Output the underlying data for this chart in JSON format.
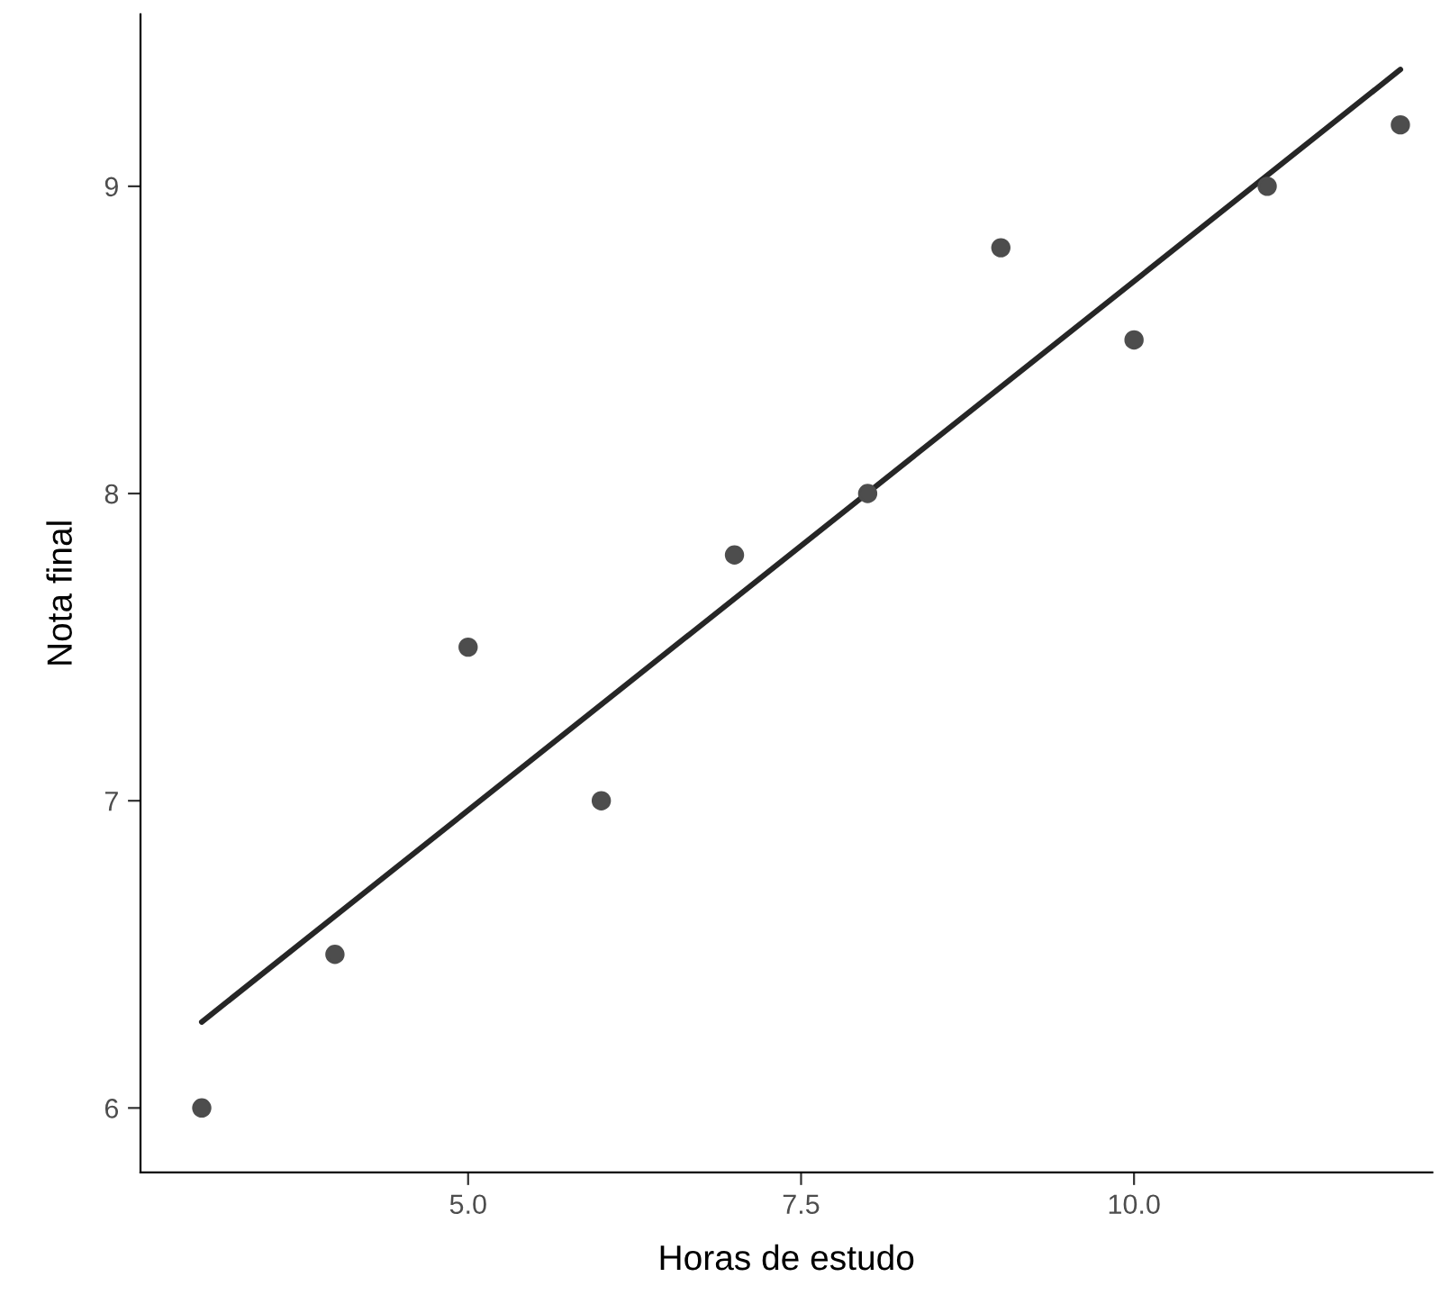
{
  "chart_data": {
    "type": "scatter",
    "xlabel": "Horas de estudo",
    "ylabel": "Nota final",
    "x": [
      3,
      4,
      5,
      6,
      7,
      8,
      9,
      10,
      11,
      12
    ],
    "series": [
      {
        "color": "#4d4d4d",
        "marker": "circle",
        "values": [
          6,
          6.5,
          7.5,
          7,
          7.8,
          8,
          8.8,
          8.5,
          9,
          9.2
        ]
      },
      {
        "type": "line",
        "marker": "none",
        "color": "#262626",
        "x": [
          3,
          12
        ],
        "values": [
          6.28,
          9.38
        ]
      }
    ],
    "xlim": [
      2.54,
      12.24
    ],
    "ylim": [
      5.79,
      9.56
    ],
    "xticks": [
      {
        "value": 5,
        "label": "5.0"
      },
      {
        "value": 7.5,
        "label": "7.5"
      },
      {
        "value": 10,
        "label": "10.0"
      }
    ],
    "yticks": [
      6,
      7,
      8,
      9
    ],
    "grid": false,
    "legend": false
  }
}
